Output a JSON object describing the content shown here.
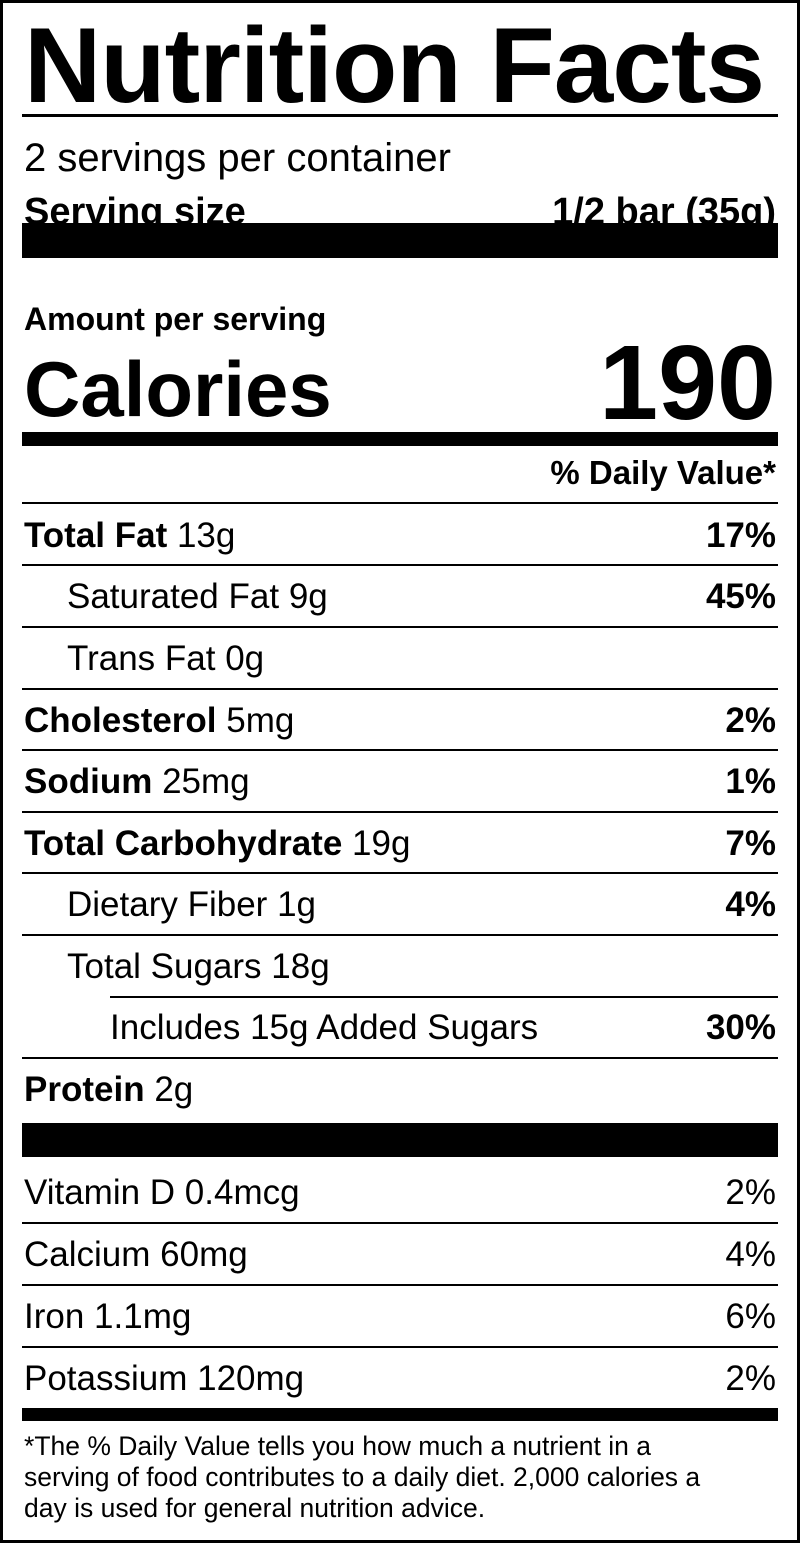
{
  "title": "Nutrition Facts",
  "servings_per_container": "2 servings per container",
  "serving_size": {
    "label": "Serving size",
    "value": "1/2 bar (35g)"
  },
  "amount_per_serving": "Amount per serving",
  "calories": {
    "label": "Calories",
    "value": "190"
  },
  "daily_value_header": "% Daily Value*",
  "nutrients": [
    {
      "name": "Total Fat",
      "amount": "13g",
      "dv": "17%"
    },
    {
      "name": "Saturated Fat",
      "amount": "9g",
      "dv": "45%"
    },
    {
      "name": "Trans Fat",
      "amount": "0g",
      "dv": ""
    },
    {
      "name": "Cholesterol",
      "amount": "5mg",
      "dv": "2%"
    },
    {
      "name": "Sodium",
      "amount": "25mg",
      "dv": "1%"
    },
    {
      "name": "Total Carbohydrate",
      "amount": "19g",
      "dv": "7%"
    },
    {
      "name": "Dietary Fiber",
      "amount": "1g",
      "dv": "4%"
    },
    {
      "name": "Total Sugars",
      "amount": "18g",
      "dv": ""
    },
    {
      "name": "Includes 15g Added Sugars",
      "amount": "",
      "dv": "30%"
    },
    {
      "name": "Protein",
      "amount": "2g",
      "dv": ""
    }
  ],
  "vitamins": [
    {
      "name": "Vitamin D 0.4mcg",
      "dv": "2%"
    },
    {
      "name": "Calcium 60mg",
      "dv": "4%"
    },
    {
      "name": "Iron 1.1mg",
      "dv": "6%"
    },
    {
      "name": "Potassium 120mg",
      "dv": "2%"
    }
  ],
  "footnote": [
    "*The % Daily Value tells you how much a nutrient in a",
    "serving of food contributes to a daily diet. 2,000 calories a",
    "day is used for general nutrition advice."
  ]
}
